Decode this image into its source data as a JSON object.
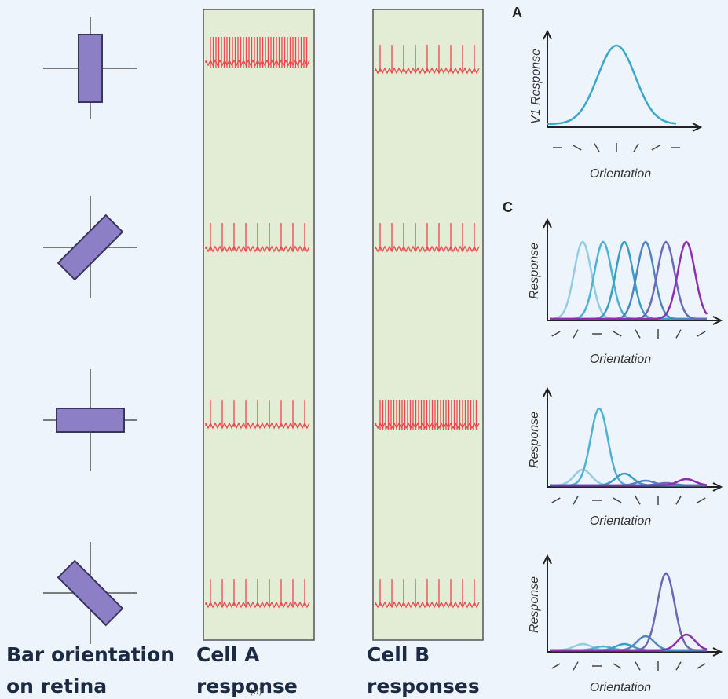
{
  "bars_label": [
    "Bar orientation",
    "on retina"
  ],
  "cell_a_label": [
    "Cell A",
    "response"
  ],
  "cell_b_label": [
    "Cell B",
    "responses"
  ],
  "figure_tag": "(b)",
  "panel_a": {
    "label": "A",
    "y_label": "V1 Response",
    "x_label": "Orientation"
  },
  "panel_c": {
    "label": "C",
    "plots": [
      {
        "y_label": "Response",
        "x_label": "Orientation"
      },
      {
        "y_label": "Response",
        "x_label": "Orientation"
      },
      {
        "y_label": "Response",
        "x_label": "Orientation"
      }
    ]
  }
}
